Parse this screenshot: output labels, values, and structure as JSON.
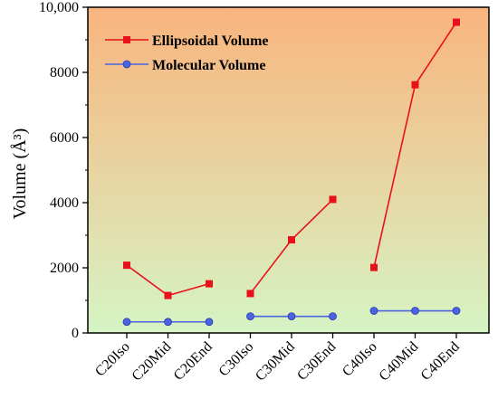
{
  "chart_data": {
    "type": "line",
    "categories": [
      "C20Iso",
      "C20Mid",
      "C20End",
      "C30Iso",
      "C30Mid",
      "C30End",
      "C40Iso",
      "C40Mid",
      "C40End"
    ],
    "groups": [
      [
        0,
        1,
        2
      ],
      [
        3,
        4,
        5
      ],
      [
        6,
        7,
        8
      ]
    ],
    "series": [
      {
        "name": "Ellipsoidal Volume",
        "values": [
          2080,
          1150,
          1510,
          1210,
          2860,
          4100,
          2010,
          7620,
          9540
        ],
        "color": "#e8101a",
        "marker": "square"
      },
      {
        "name": "Molecular Volume",
        "values": [
          340,
          340,
          340,
          510,
          510,
          510,
          680,
          680,
          680
        ],
        "color": "#4a63e0",
        "marker": "circle"
      }
    ],
    "xlabel": "",
    "ylabel": "Volume (Å³)",
    "ylim": [
      0,
      10000
    ],
    "yticks": [
      0,
      2000,
      4000,
      6000,
      8000,
      10000
    ],
    "ytick_labels": [
      "0",
      "2000",
      "4000",
      "6000",
      "8000",
      "10,000"
    ],
    "legend_position": "top-left",
    "grid": false,
    "background_gradient": {
      "top": "#f9b47e",
      "bottom": "#d6f4c4"
    }
  }
}
